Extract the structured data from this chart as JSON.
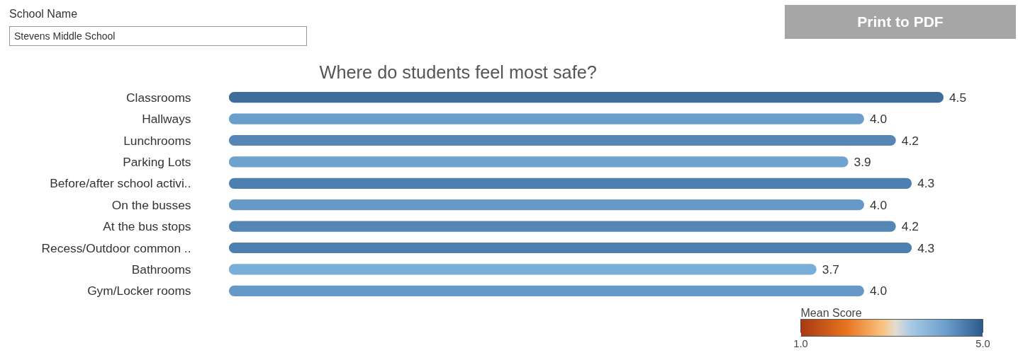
{
  "chart_data": {
    "type": "bar",
    "orientation": "horizontal",
    "title": "Where do students feel most safe?",
    "categories": [
      "Classrooms",
      "Hallways",
      "Lunchrooms",
      "Parking Lots",
      "Before/after school activi..",
      "On the busses",
      "At the bus stops",
      "Recess/Outdoor common ..",
      "Bathrooms",
      "Gym/Locker rooms"
    ],
    "values": [
      4.5,
      4.0,
      4.2,
      3.9,
      4.3,
      4.0,
      4.2,
      4.3,
      3.7,
      4.0
    ],
    "colors": [
      "#3e6d9c",
      "#6a9ecb",
      "#5586b6",
      "#6ea2cf",
      "#4d7fb0",
      "#6699c7",
      "#5486b6",
      "#4d7fb0",
      "#79aed8",
      "#6699c7"
    ],
    "value_labels": [
      "4.5",
      "4.0",
      "4.2",
      "3.9",
      "4.3",
      "4.0",
      "4.2",
      "4.3",
      "3.7",
      "4.0"
    ],
    "tick_labels": "y",
    "grid": false,
    "clabel": "Mean Score",
    "clim": [
      1.0,
      5.0
    ],
    "cticks": [
      {
        "value": 1.0,
        "label": "1.0"
      },
      {
        "value": 5.0,
        "label": "5.0"
      }
    ],
    "annotations": [
      "School Name",
      "Stevens Middle School",
      "Print to PDF"
    ]
  }
}
